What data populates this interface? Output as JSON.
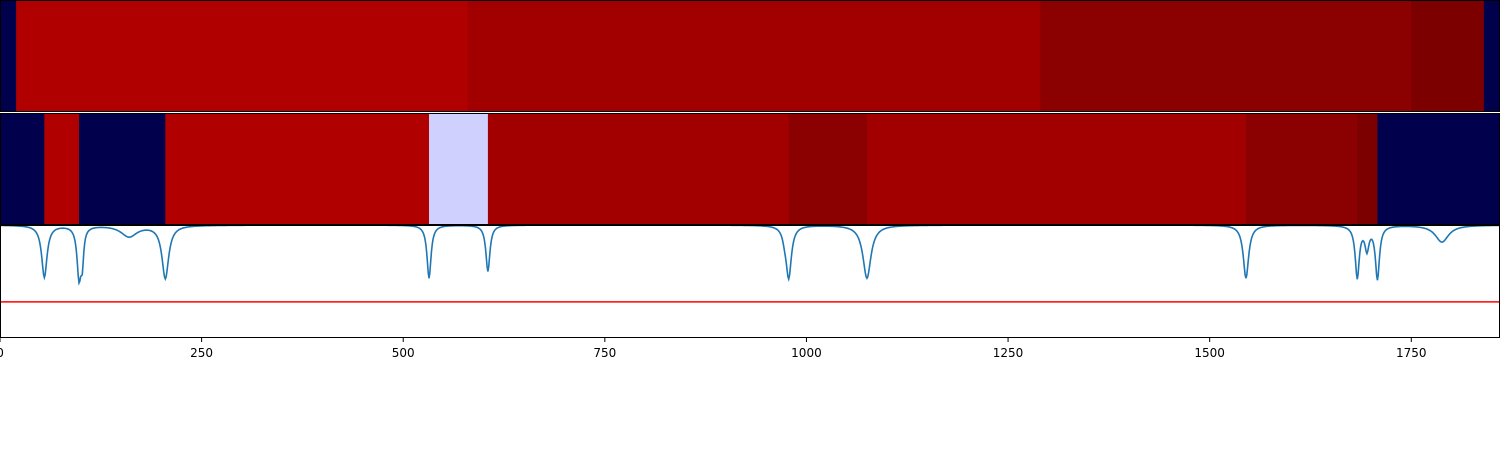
{
  "chart_data": {
    "type": "heatmap",
    "x_range": [
      0,
      1860
    ],
    "x_ticks": [
      {
        "value": 0,
        "label": "0"
      },
      {
        "value": 250,
        "label": "250"
      },
      {
        "value": 500,
        "label": "500"
      },
      {
        "value": 750,
        "label": "750"
      },
      {
        "value": 1000,
        "label": "1000"
      },
      {
        "value": 1250,
        "label": "1250"
      },
      {
        "value": 1500,
        "label": "1500"
      },
      {
        "value": 1750,
        "label": "1750"
      }
    ],
    "rows": [
      {
        "segments": [
          {
            "start": 0,
            "end": 20,
            "color": "#00004d"
          },
          {
            "start": 20,
            "end": 580,
            "color": "#b00000"
          },
          {
            "start": 580,
            "end": 1290,
            "color": "#a20000"
          },
          {
            "start": 1290,
            "end": 1750,
            "color": "#8b0000"
          },
          {
            "start": 1750,
            "end": 1840,
            "color": "#7d0000"
          },
          {
            "start": 1840,
            "end": 1860,
            "color": "#00004d"
          }
        ]
      },
      {
        "segments": [
          {
            "start": 0,
            "end": 55,
            "color": "#00004d"
          },
          {
            "start": 55,
            "end": 98,
            "color": "#b00000"
          },
          {
            "start": 98,
            "end": 205,
            "color": "#00004d"
          },
          {
            "start": 205,
            "end": 532,
            "color": "#b00000"
          },
          {
            "start": 532,
            "end": 605,
            "color": "#d0d0ff"
          },
          {
            "start": 605,
            "end": 978,
            "color": "#a20000"
          },
          {
            "start": 978,
            "end": 1075,
            "color": "#8b0000"
          },
          {
            "start": 1075,
            "end": 1545,
            "color": "#a20000"
          },
          {
            "start": 1545,
            "end": 1683,
            "color": "#8b0000"
          },
          {
            "start": 1683,
            "end": 1708,
            "color": "#7d0000"
          },
          {
            "start": 1708,
            "end": 1860,
            "color": "#00004d"
          }
        ]
      }
    ],
    "signal": {
      "color": "#1f77b4",
      "y_range": [
        0,
        1
      ],
      "baseline": 1.0,
      "dips": [
        {
          "center": 55,
          "depth": 0.46,
          "width": 4
        },
        {
          "center": 98,
          "depth": 0.45,
          "width": 3
        },
        {
          "center": 102,
          "depth": 0.27,
          "width": 2
        },
        {
          "center": 205,
          "depth": 0.47,
          "width": 5
        },
        {
          "center": 160,
          "depth": 0.1,
          "width": 12
        },
        {
          "center": 532,
          "depth": 0.47,
          "width": 3
        },
        {
          "center": 605,
          "depth": 0.41,
          "width": 3
        },
        {
          "center": 973,
          "depth": 0.06,
          "width": 3
        },
        {
          "center": 978,
          "depth": 0.46,
          "width": 4
        },
        {
          "center": 1075,
          "depth": 0.47,
          "width": 6
        },
        {
          "center": 1545,
          "depth": 0.47,
          "width": 4
        },
        {
          "center": 1683,
          "depth": 0.46,
          "width": 3
        },
        {
          "center": 1708,
          "depth": 0.47,
          "width": 3
        },
        {
          "center": 1695,
          "depth": 0.2,
          "width": 3
        },
        {
          "center": 1788,
          "depth": 0.15,
          "width": 10
        }
      ],
      "threshold": {
        "value": 0.32,
        "color": "#ff0000"
      }
    }
  }
}
